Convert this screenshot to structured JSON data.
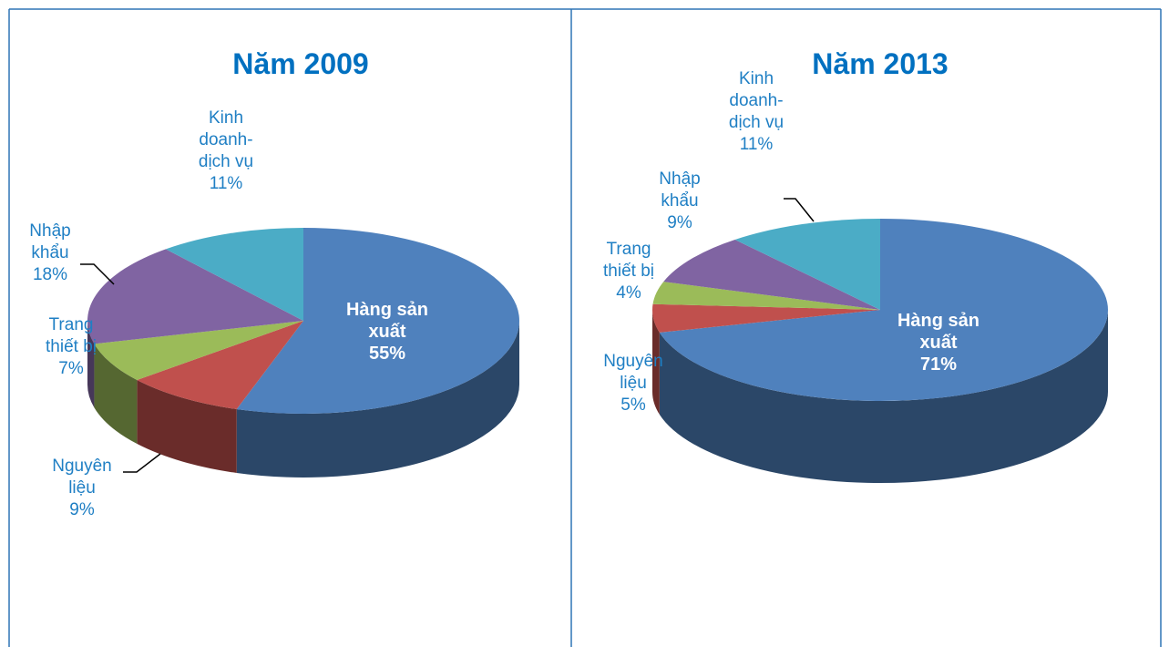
{
  "chart_data": [
    {
      "type": "pie",
      "title": "Năm 2009",
      "categories": [
        "Hàng sản xuất",
        "Nguyên liệu",
        "Trang thiết bị",
        "Nhập khẩu",
        "Kinh doanh-dịch vụ"
      ],
      "values": [
        55,
        9,
        7,
        18,
        11
      ],
      "value_labels": [
        "55%",
        "9%",
        "7%",
        "18%",
        "11%"
      ],
      "colors": [
        "#4f81bd",
        "#c0504d",
        "#9bbb59",
        "#8064a2",
        "#4bacc6"
      ]
    },
    {
      "type": "pie",
      "title": "Năm 2013",
      "categories": [
        "Hàng sản xuất",
        "Nguyên liệu",
        "Trang thiết bị",
        "Nhập khẩu",
        "Kinh doanh-dịch vụ"
      ],
      "values": [
        71,
        5,
        4,
        9,
        11
      ],
      "value_labels": [
        "71%",
        "5%",
        "4%",
        "9%",
        "11%"
      ],
      "colors": [
        "#4f81bd",
        "#c0504d",
        "#9bbb59",
        "#8064a2",
        "#4bacc6"
      ]
    }
  ]
}
